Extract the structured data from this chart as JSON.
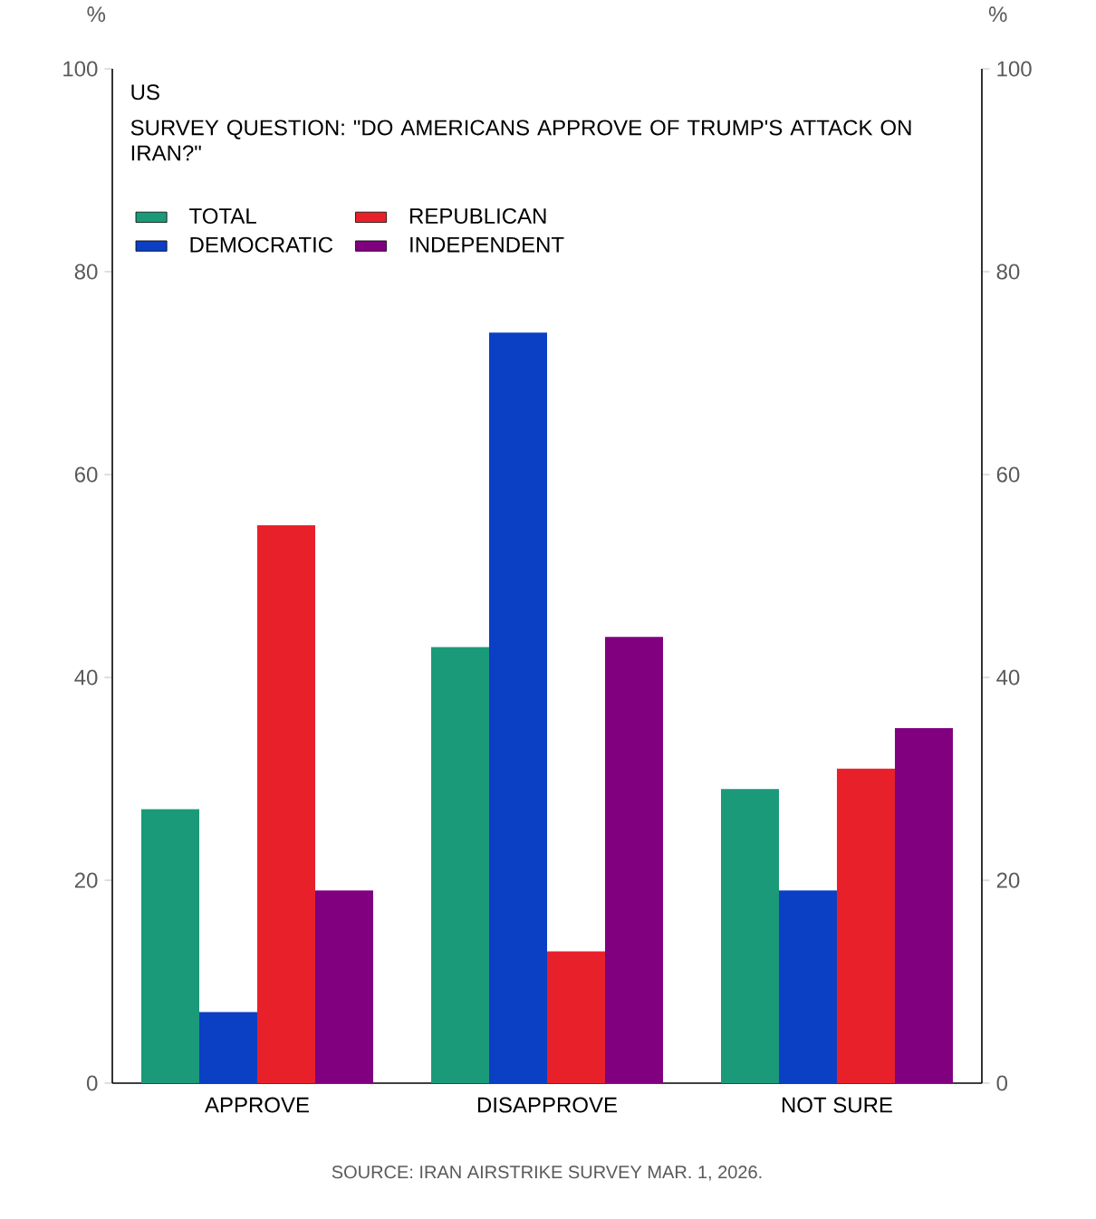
{
  "chart_data": {
    "type": "bar",
    "title": "US",
    "subtitle": "SURVEY QUESTION: \"DO AMERICANS APPROVE OF TRUMP'S ATTACK ON IRAN?\"",
    "ylabel": "%",
    "y2label": "%",
    "categories": [
      "APPROVE",
      "DISAPPROVE",
      "NOT SURE"
    ],
    "series": [
      {
        "name": "TOTAL",
        "color": "#1a9a78",
        "values": [
          27,
          43,
          29
        ]
      },
      {
        "name": "DEMOCRATIC",
        "color": "#0b3fc4",
        "values": [
          7,
          74,
          19
        ]
      },
      {
        "name": "REPUBLICAN",
        "color": "#e8202a",
        "values": [
          55,
          13,
          31
        ]
      },
      {
        "name": "INDEPENDENT",
        "color": "#800080",
        "values": [
          19,
          44,
          35
        ]
      }
    ],
    "ylim": [
      0,
      100
    ],
    "yticks": [
      0,
      20,
      40,
      60,
      80,
      100
    ],
    "y2lim": [
      0,
      100
    ],
    "y2ticks": [
      0,
      20,
      40,
      60,
      80,
      100
    ],
    "legend": "top left",
    "grid": false,
    "annotations": [
      "SOURCE: IRAN AIRSTRIKE SURVEY MAR. 1, 2026."
    ]
  }
}
